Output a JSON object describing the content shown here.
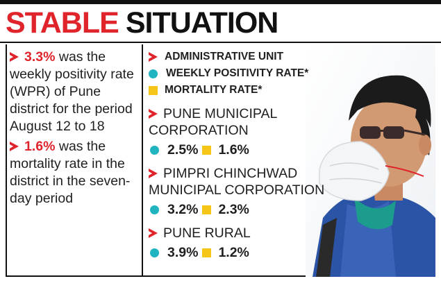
{
  "title": {
    "red_part": "STABLE",
    "black_part": "SITUATION"
  },
  "left_facts": [
    {
      "value": "3.3%",
      "text": " was the weekly positivity rate (WPR) of Pune district for the period August 12 to 18"
    },
    {
      "value": "1.6%",
      "text": " was the mortality rate in the district in the seven-day period"
    }
  ],
  "legend": {
    "unit_label": "ADMINISTRATIVE UNIT",
    "wpr_label": "WEEKLY POSITIVITY RATE*",
    "mortality_label": "MORTALITY RATE*"
  },
  "units": [
    {
      "name_line1": "PUNE MUNICIPAL",
      "name_line2": "CORPORATION",
      "wpr": "2.5%",
      "mortality": "1.6%"
    },
    {
      "name_line1": "PIMPRI CHINCHWAD",
      "name_line2": "MUNICIPAL CORPORATION",
      "wpr": "3.2%",
      "mortality": "2.3%"
    },
    {
      "name_line1": "PUNE RURAL",
      "name_line2": "",
      "wpr": "3.9%",
      "mortality": "1.2%"
    }
  ],
  "colors": {
    "accent_red": "#e0242b",
    "wpr_teal": "#1fb4c0",
    "mortality_yellow": "#f5c518"
  }
}
